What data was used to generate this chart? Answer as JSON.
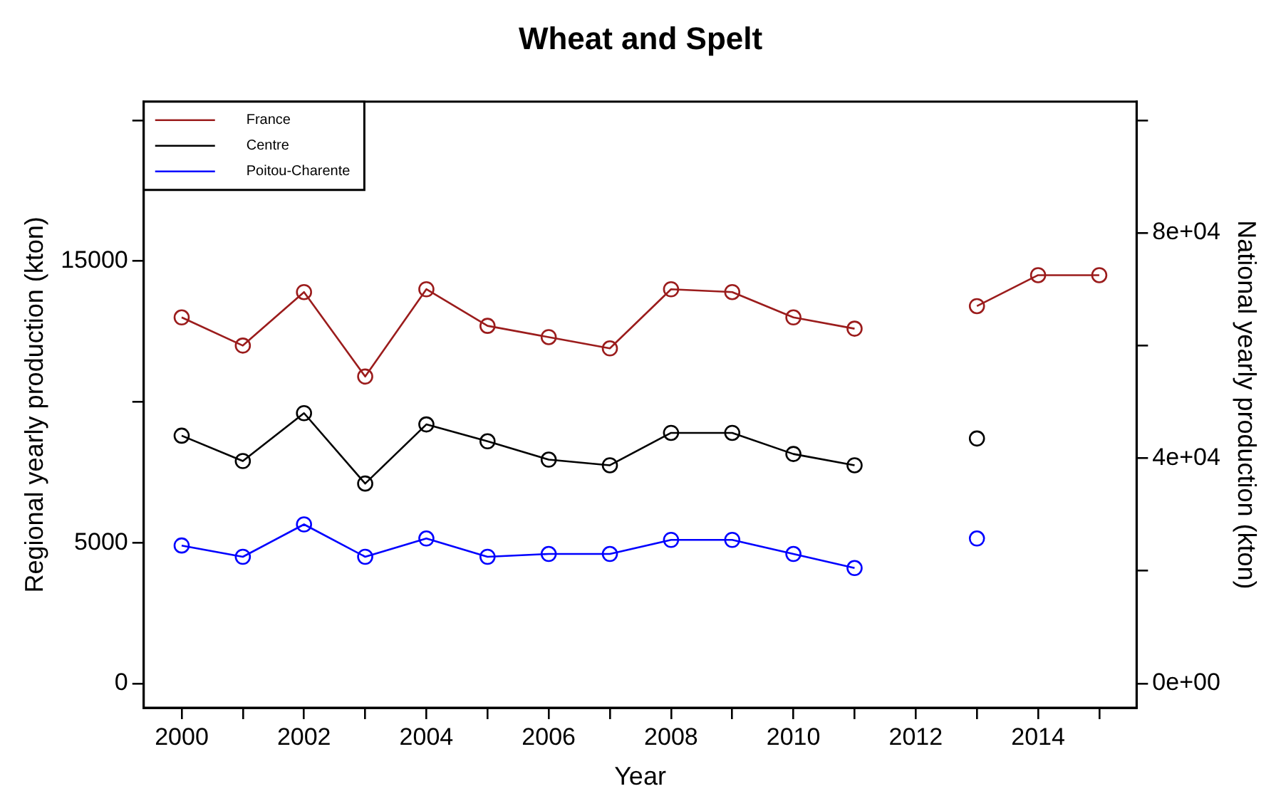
{
  "chart_data": {
    "type": "line",
    "title": "Wheat and Spelt",
    "xlabel": "Year",
    "ylabel": "Regional yearly production (kton)",
    "y2label": "National yearly production (kton)",
    "x": [
      2000,
      2001,
      2002,
      2003,
      2004,
      2005,
      2006,
      2007,
      2008,
      2009,
      2010,
      2011,
      2012,
      2013,
      2014,
      2015
    ],
    "series": [
      {
        "name": "France",
        "color": "#9b1c1c",
        "axis": "y2",
        "values": [
          65000,
          60000,
          69500,
          54500,
          70000,
          63500,
          61500,
          59500,
          70000,
          69500,
          65000,
          63000,
          null,
          67000,
          72500,
          72500
        ]
      },
      {
        "name": "Centre",
        "color": "#000000",
        "values": [
          8800,
          7900,
          9600,
          7100,
          9200,
          8600,
          7950,
          7750,
          8900,
          8900,
          8150,
          7750,
          null,
          8700,
          null,
          null
        ]
      },
      {
        "name": "Poitou-Charente",
        "color": "#0000ff",
        "values": [
          4900,
          4500,
          5650,
          4500,
          5150,
          4500,
          4600,
          4600,
          5100,
          5100,
          4600,
          4100,
          null,
          5150,
          null,
          null
        ]
      }
    ],
    "xlim": [
      1999.38,
      2015.61
    ],
    "xticks": [
      2000,
      {
        "value": 2001,
        "label": null
      },
      2002,
      {
        "value": 2003,
        "label": null
      },
      2004,
      {
        "value": 2005,
        "label": null
      },
      2006,
      {
        "value": 2007,
        "label": null
      },
      2008,
      {
        "value": 2009,
        "label": null
      },
      2010,
      {
        "value": 2011,
        "label": null
      },
      2012,
      {
        "value": 2013,
        "label": null
      },
      2014,
      {
        "value": 2015,
        "label": null
      }
    ],
    "ylim": [
      -860,
      20660
    ],
    "yticks": [
      0,
      5000,
      {
        "value": 10000,
        "label": null
      },
      15000,
      {
        "value": 20000,
        "label": null
      }
    ],
    "y2lim": [
      -4300,
      103300
    ],
    "y2ticks": [
      {
        "value": 0,
        "label": "0e+00"
      },
      {
        "value": 20000,
        "label": null
      },
      {
        "value": 40000,
        "label": "4e+04"
      },
      {
        "value": 60000,
        "label": null
      },
      {
        "value": 80000,
        "label": "8e+04"
      },
      {
        "value": 100000,
        "label": null
      }
    ],
    "legend": "top left",
    "marker": "circle",
    "line_style": "solid",
    "grid": false
  }
}
